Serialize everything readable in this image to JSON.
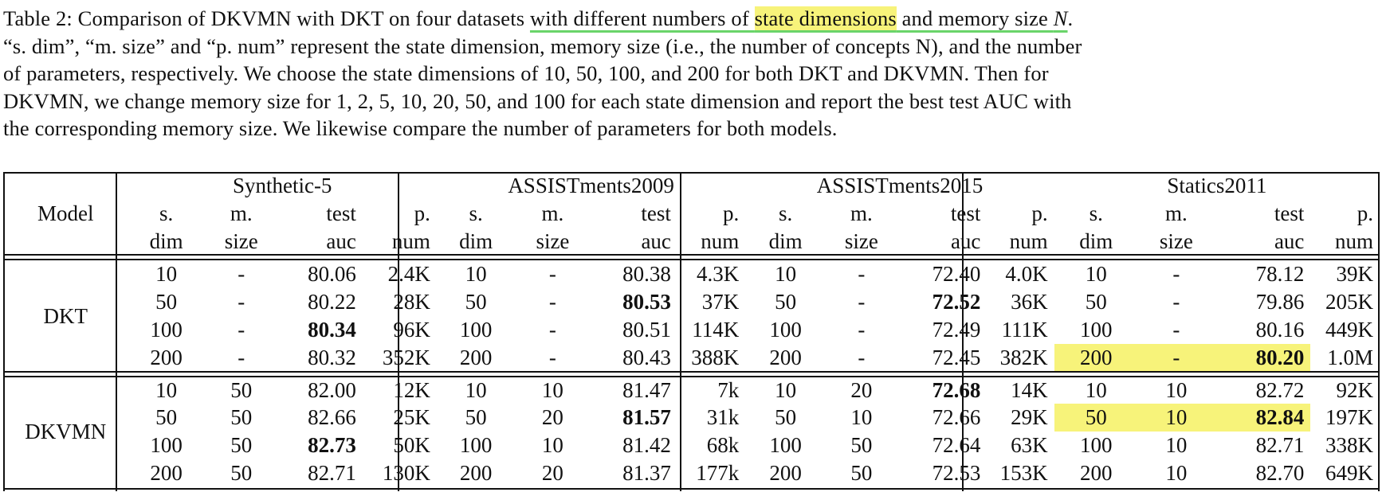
{
  "caption": {
    "lines": [
      [
        "Table 2: Comparison of DKVMN with DKT on four datasets ",
        "with different numbers of ",
        "state dimensions",
        " and memory size ",
        "N",
        "."
      ],
      "“s. dim”, “m. size” and “p. num” represent the state dimension, memory size (i.e., the number of concepts N), and the number",
      "of parameters, respectively.  We choose the state dimensions of 10, 50, 100, and 200 for both DKT and DKVMN. Then for",
      "DKVMN, we change memory size for 1, 2, 5, 10, 20, 50, and 100 for each state dimension and report the best test AUC with",
      "the corresponding memory size. We likewise compare the number of parameters for both models."
    ]
  },
  "table": {
    "model_header": "Model",
    "datasets": [
      "Synthetic-5",
      "ASSISTments2009",
      "ASSISTments2015",
      "Statics2011"
    ],
    "subheader_top": [
      "s.",
      "m.",
      "test",
      "p."
    ],
    "subheader_bottom": [
      "dim",
      "size",
      "auc",
      "num"
    ],
    "groups": [
      {
        "model": "DKT",
        "rows": [
          [
            [
              "10",
              "-",
              "80.06",
              "2.4K"
            ],
            [
              "10",
              "-",
              "80.38",
              "4.3K"
            ],
            [
              "10",
              "-",
              "72.40",
              "4.0K"
            ],
            [
              "10",
              "-",
              "78.12",
              "39K"
            ]
          ],
          [
            [
              "50",
              "-",
              "80.22",
              "28K"
            ],
            [
              "50",
              "-",
              "80.53",
              "37K"
            ],
            [
              "50",
              "-",
              "72.52",
              "36K"
            ],
            [
              "50",
              "-",
              "79.86",
              "205K"
            ]
          ],
          [
            [
              "100",
              "-",
              "80.34",
              "96K"
            ],
            [
              "100",
              "-",
              "80.51",
              "114K"
            ],
            [
              "100",
              "-",
              "72.49",
              "111K"
            ],
            [
              "100",
              "-",
              "80.16",
              "449K"
            ]
          ],
          [
            [
              "200",
              "-",
              "80.32",
              "352K"
            ],
            [
              "200",
              "-",
              "80.43",
              "388K"
            ],
            [
              "200",
              "-",
              "72.45",
              "382K"
            ],
            [
              "200",
              "-",
              "80.20",
              "1.0M"
            ]
          ]
        ],
        "bold": [
          [
            2,
            0
          ],
          [
            1,
            1
          ],
          [
            1,
            2
          ],
          [
            3,
            3
          ]
        ]
      },
      {
        "model": "DKVMN",
        "rows": [
          [
            [
              "10",
              "50",
              "82.00",
              "12K"
            ],
            [
              "10",
              "10",
              "81.47",
              "7k"
            ],
            [
              "10",
              "20",
              "72.68",
              "14K"
            ],
            [
              "10",
              "10",
              "82.72",
              "92K"
            ]
          ],
          [
            [
              "50",
              "50",
              "82.66",
              "25K"
            ],
            [
              "50",
              "20",
              "81.57",
              "31k"
            ],
            [
              "50",
              "10",
              "72.66",
              "29K"
            ],
            [
              "50",
              "10",
              "82.84",
              "197K"
            ]
          ],
          [
            [
              "100",
              "50",
              "82.73",
              "50K"
            ],
            [
              "100",
              "10",
              "81.42",
              "68k"
            ],
            [
              "100",
              "50",
              "72.64",
              "63K"
            ],
            [
              "100",
              "10",
              "82.71",
              "338K"
            ]
          ],
          [
            [
              "200",
              "50",
              "82.71",
              "130K"
            ],
            [
              "200",
              "20",
              "81.37",
              "177k"
            ],
            [
              "200",
              "50",
              "72.53",
              "153K"
            ],
            [
              "200",
              "10",
              "82.70",
              "649K"
            ]
          ]
        ],
        "bold": [
          [
            2,
            0
          ],
          [
            1,
            1
          ],
          [
            0,
            2
          ],
          [
            1,
            3
          ]
        ]
      }
    ]
  },
  "colors": {
    "highlight": "#f7f37a",
    "underline": "#6ad46a"
  }
}
